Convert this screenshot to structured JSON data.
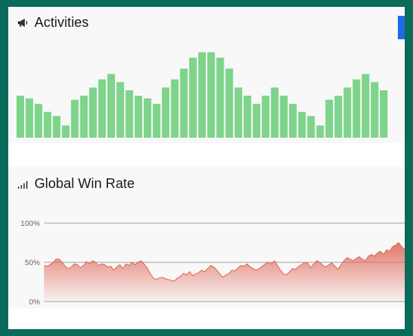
{
  "activities": {
    "title": "Activities",
    "icon": "megaphone-icon",
    "bar_color": "#7dd48a",
    "chart_data": {
      "type": "bar",
      "values": [
        62,
        58,
        50,
        38,
        32,
        18,
        56,
        62,
        74,
        86,
        94,
        82,
        70,
        62,
        58,
        50,
        74,
        86,
        102,
        118,
        126,
        126,
        118,
        102,
        74,
        62,
        50,
        62,
        74,
        62,
        50,
        38,
        32,
        18,
        56,
        62,
        74,
        86,
        94,
        82,
        70
      ]
    }
  },
  "winrate": {
    "title": "Global Win Rate",
    "icon": "signal-bars-icon",
    "line_color": "#e06a5a",
    "chart_data": {
      "type": "area",
      "ylim": [
        0,
        100
      ],
      "yticks": [
        "100%",
        "50%",
        "0%"
      ],
      "values": [
        46,
        45,
        47,
        50,
        54,
        54,
        50,
        45,
        42,
        44,
        48,
        47,
        43,
        46,
        51,
        48,
        52,
        50,
        46,
        48,
        47,
        44,
        45,
        40,
        44,
        47,
        42,
        48,
        46,
        50,
        47,
        50,
        52,
        48,
        43,
        36,
        30,
        28,
        30,
        31,
        29,
        28,
        27,
        26,
        30,
        32,
        36,
        34,
        38,
        33,
        35,
        37,
        40,
        38,
        42,
        46,
        44,
        40,
        35,
        31,
        34,
        36,
        40,
        39,
        43,
        46,
        45,
        48,
        44,
        42,
        40,
        42,
        45,
        48,
        50,
        48,
        52,
        46,
        40,
        35,
        34,
        38,
        42,
        41,
        45,
        47,
        50,
        49,
        43,
        48,
        52,
        50,
        46,
        44,
        47,
        49,
        45,
        41,
        47,
        52,
        56,
        54,
        52,
        55,
        57,
        54,
        52,
        58,
        60,
        58,
        62,
        64,
        60,
        66,
        64,
        70,
        72,
        75,
        70,
        66
      ]
    }
  }
}
